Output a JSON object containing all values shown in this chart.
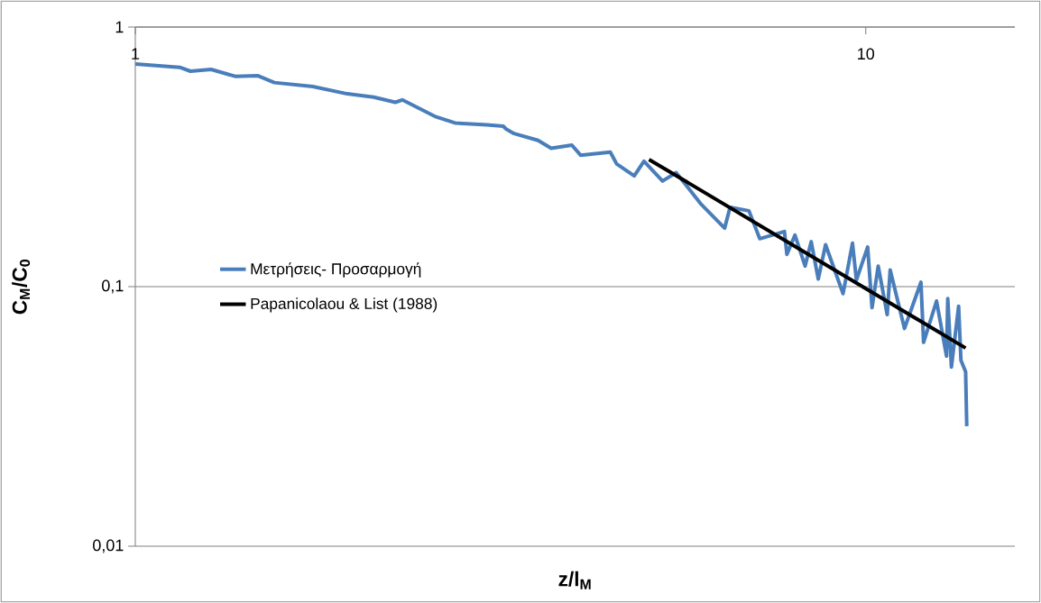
{
  "chart_data": {
    "type": "line",
    "log": "xy",
    "grid": "y",
    "legend": "left",
    "xlabel": "z/l$_{M}$",
    "ylabel": "C$_{M}$/C$_{0}$",
    "xlim": [
      1,
      16
    ],
    "xticks": [
      1,
      10
    ],
    "ylim": [
      0.01,
      1
    ],
    "yticks": [
      {
        "value": 0.01,
        "label": "0,01"
      },
      {
        "value": 0.1,
        "label": "0,1"
      },
      1
    ],
    "series": [
      {
        "name": "Μετρήσεις- Προσαρμογή",
        "color": "#4a7ebb",
        "x": [
          1.0,
          1.15,
          1.19,
          1.27,
          1.37,
          1.47,
          1.55,
          1.75,
          1.95,
          2.12,
          2.27,
          2.32,
          2.57,
          2.74,
          3.03,
          3.19,
          3.22,
          3.3,
          3.56,
          3.71,
          3.96,
          4.07,
          4.47,
          4.56,
          4.82,
          4.97,
          5.27,
          5.5,
          5.94,
          6.41,
          6.52,
          6.92,
          7.16,
          7.74,
          7.8,
          8.0,
          8.26,
          8.42,
          8.61,
          8.81,
          9.31,
          9.59,
          9.71,
          10.06,
          10.2,
          10.4,
          10.7,
          10.8,
          11.3,
          11.9,
          12.0,
          12.5,
          12.9,
          12.95,
          13.1,
          13.4,
          13.5,
          13.7,
          13.75
        ],
        "values": [
          0.72,
          0.7,
          0.676,
          0.687,
          0.646,
          0.65,
          0.611,
          0.59,
          0.553,
          0.537,
          0.513,
          0.524,
          0.453,
          0.427,
          0.42,
          0.415,
          0.404,
          0.389,
          0.366,
          0.341,
          0.351,
          0.321,
          0.33,
          0.297,
          0.267,
          0.304,
          0.255,
          0.275,
          0.209,
          0.168,
          0.202,
          0.196,
          0.153,
          0.163,
          0.133,
          0.158,
          0.12,
          0.149,
          0.107,
          0.145,
          0.094,
          0.147,
          0.106,
          0.142,
          0.083,
          0.12,
          0.078,
          0.116,
          0.069,
          0.104,
          0.061,
          0.088,
          0.054,
          0.09,
          0.049,
          0.084,
          0.052,
          0.047,
          0.029
        ]
      },
      {
        "name": "Papanicolaou & List (1988)",
        "color": "#000000",
        "x": [
          5.05,
          13.7
        ],
        "values": [
          0.309,
          0.058
        ]
      }
    ]
  }
}
